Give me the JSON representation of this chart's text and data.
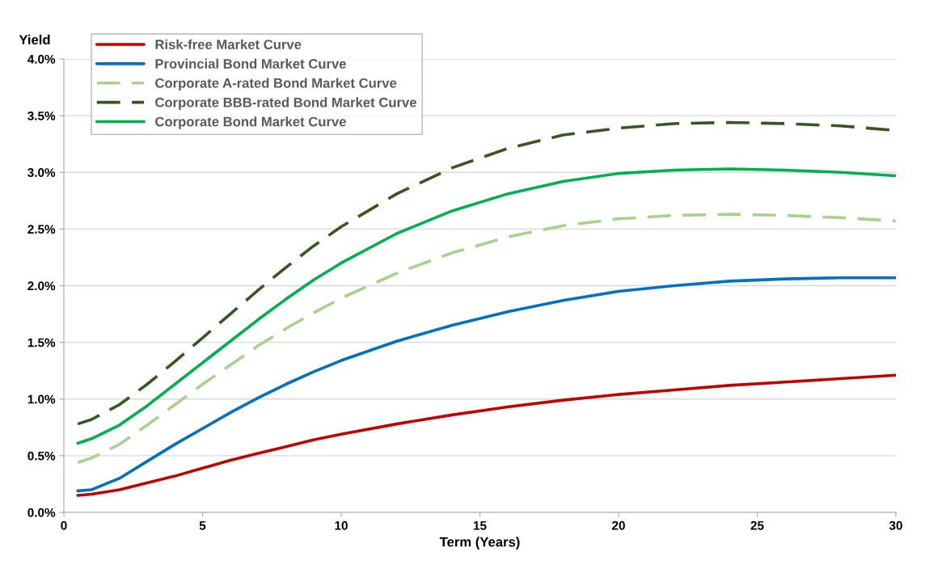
{
  "chart_data": {
    "type": "line",
    "xlabel": "Term (Years)",
    "ylabel": "Yield",
    "x": [
      0.5,
      1,
      2,
      3,
      4,
      5,
      6,
      7,
      8,
      9,
      10,
      12,
      14,
      16,
      18,
      20,
      22,
      24,
      26,
      28,
      30
    ],
    "series": [
      {
        "name": "Risk-free Market Curve",
        "color": "#c00000",
        "line_style": "solid",
        "values": [
          0.15,
          0.16,
          0.2,
          0.26,
          0.32,
          0.39,
          0.46,
          0.52,
          0.58,
          0.64,
          0.69,
          0.78,
          0.86,
          0.93,
          0.99,
          1.04,
          1.08,
          1.12,
          1.15,
          1.18,
          1.21
        ]
      },
      {
        "name": "Provincial Bond Market Curve",
        "color": "#0070c0",
        "line_style": "solid",
        "values": [
          0.19,
          0.2,
          0.3,
          0.45,
          0.6,
          0.74,
          0.88,
          1.01,
          1.13,
          1.24,
          1.34,
          1.51,
          1.65,
          1.77,
          1.87,
          1.95,
          2.0,
          2.04,
          2.06,
          2.07,
          2.07
        ]
      },
      {
        "name": "Corporate A-rated Bond Market Curve",
        "color": "#a9d18e",
        "line_style": "dashed",
        "values": [
          0.44,
          0.48,
          0.6,
          0.77,
          0.95,
          1.13,
          1.3,
          1.47,
          1.62,
          1.76,
          1.89,
          2.11,
          2.29,
          2.43,
          2.53,
          2.59,
          2.62,
          2.63,
          2.62,
          2.6,
          2.57
        ]
      },
      {
        "name": "Corporate BBB-rated Bond Market Curve",
        "color": "#375623",
        "line_style": "dashed",
        "values": [
          0.78,
          0.82,
          0.95,
          1.13,
          1.33,
          1.54,
          1.75,
          1.96,
          2.16,
          2.35,
          2.52,
          2.81,
          3.04,
          3.21,
          3.33,
          3.39,
          3.43,
          3.44,
          3.43,
          3.41,
          3.37
        ]
      },
      {
        "name": "Corporate Bond Market Curve",
        "color": "#00b050",
        "line_style": "solid",
        "values": [
          0.61,
          0.65,
          0.77,
          0.94,
          1.13,
          1.32,
          1.51,
          1.7,
          1.88,
          2.05,
          2.2,
          2.46,
          2.66,
          2.81,
          2.92,
          2.99,
          3.02,
          3.03,
          3.02,
          3.0,
          2.97
        ]
      }
    ],
    "xlim": [
      0,
      30
    ],
    "xticks": [
      0,
      5,
      10,
      15,
      20,
      25,
      30
    ],
    "ylim": [
      0,
      4
    ],
    "yticks": [
      {
        "value": 0,
        "label": "0.0%"
      },
      {
        "value": 0.5,
        "label": "0.5%"
      },
      {
        "value": 1,
        "label": "1.0%"
      },
      {
        "value": 1.5,
        "label": "1.5%"
      },
      {
        "value": 2,
        "label": "2.0%"
      },
      {
        "value": 2.5,
        "label": "2.5%"
      },
      {
        "value": 3,
        "label": "3.0%"
      },
      {
        "value": 3.5,
        "label": "3.5%"
      },
      {
        "value": 4,
        "label": "4.0%"
      }
    ],
    "grid": "y",
    "legend": "top left"
  }
}
